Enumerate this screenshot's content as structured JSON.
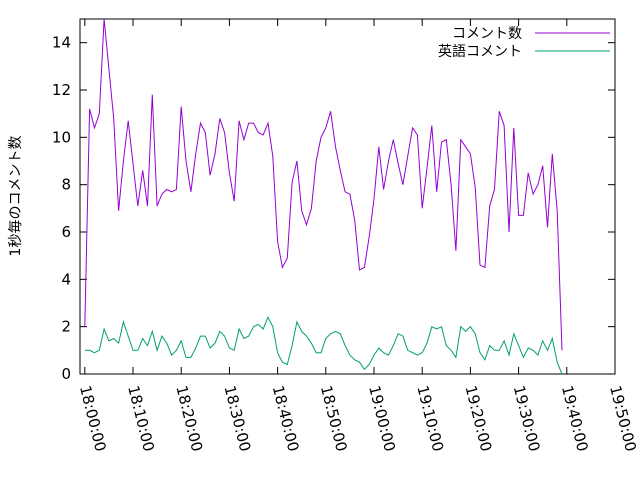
{
  "chart_data": {
    "type": "line",
    "title": "",
    "xlabel": "",
    "ylabel": "1秒毎のコメント数",
    "x_start": "18:00:00",
    "x_step": "1 minute per point",
    "xlim": [
      "17:59:00",
      "19:50:00"
    ],
    "xticks": [
      "18:00:00",
      "18:10:00",
      "18:20:00",
      "18:30:00",
      "18:40:00",
      "18:50:00",
      "19:00:00",
      "19:10:00",
      "19:20:00",
      "19:30:00",
      "19:40:00",
      "19:50:00"
    ],
    "ylim": [
      0,
      15
    ],
    "yticks": [
      0,
      2,
      4,
      6,
      8,
      10,
      12,
      14
    ],
    "grid": false,
    "legend_position": "top-right",
    "series": [
      {
        "name": "コメント数",
        "color": "#9400d3",
        "values": [
          2.0,
          11.2,
          10.4,
          11.0,
          15.0,
          12.9,
          10.8,
          6.9,
          9.0,
          10.7,
          8.9,
          7.1,
          8.6,
          7.1,
          11.8,
          7.1,
          7.6,
          7.8,
          7.7,
          7.8,
          11.3,
          9.0,
          7.7,
          9.3,
          10.6,
          10.2,
          8.4,
          9.3,
          10.8,
          10.2,
          8.5,
          7.3,
          10.7,
          9.9,
          10.6,
          10.6,
          10.2,
          10.1,
          10.6,
          9.2,
          5.6,
          4.5,
          4.9,
          8.1,
          9.0,
          6.9,
          6.3,
          7.0,
          9.0,
          10.0,
          10.4,
          11.1,
          9.6,
          8.6,
          7.7,
          7.6,
          6.5,
          4.4,
          4.5,
          5.8,
          7.4,
          9.6,
          7.8,
          9.0,
          9.9,
          8.9,
          8.0,
          9.2,
          10.4,
          10.1,
          7.0,
          8.7,
          10.5,
          7.7,
          9.8,
          9.9,
          8.0,
          5.2,
          9.9,
          9.6,
          9.3,
          7.9,
          4.6,
          4.5,
          7.1,
          7.8,
          11.1,
          10.5,
          6.0,
          10.4,
          6.7,
          6.7,
          8.5,
          7.6,
          8.0,
          8.8,
          6.2,
          9.3,
          6.9,
          1.0
        ]
      },
      {
        "name": "英語コメント",
        "color": "#009e73",
        "values": [
          1.0,
          1.0,
          0.9,
          1.0,
          1.9,
          1.4,
          1.5,
          1.3,
          2.2,
          1.6,
          1.0,
          1.0,
          1.5,
          1.2,
          1.8,
          1.0,
          1.6,
          1.3,
          0.8,
          1.0,
          1.4,
          0.7,
          0.7,
          1.1,
          1.6,
          1.6,
          1.1,
          1.3,
          1.8,
          1.6,
          1.1,
          1.0,
          1.9,
          1.5,
          1.6,
          2.0,
          2.1,
          1.9,
          2.4,
          2.0,
          0.9,
          0.5,
          0.4,
          1.2,
          2.2,
          1.8,
          1.6,
          1.3,
          0.9,
          0.9,
          1.5,
          1.7,
          1.8,
          1.7,
          1.2,
          0.8,
          0.6,
          0.5,
          0.2,
          0.4,
          0.8,
          1.1,
          0.9,
          0.8,
          1.2,
          1.7,
          1.6,
          1.0,
          0.9,
          0.8,
          0.9,
          1.3,
          2.0,
          1.9,
          2.0,
          1.2,
          1.0,
          0.7,
          2.0,
          1.8,
          2.0,
          1.7,
          0.9,
          0.6,
          1.2,
          1.0,
          1.0,
          1.4,
          0.8,
          1.7,
          1.2,
          0.7,
          1.1,
          1.0,
          0.8,
          1.4,
          1.0,
          1.5,
          0.5,
          0.0
        ]
      }
    ]
  }
}
